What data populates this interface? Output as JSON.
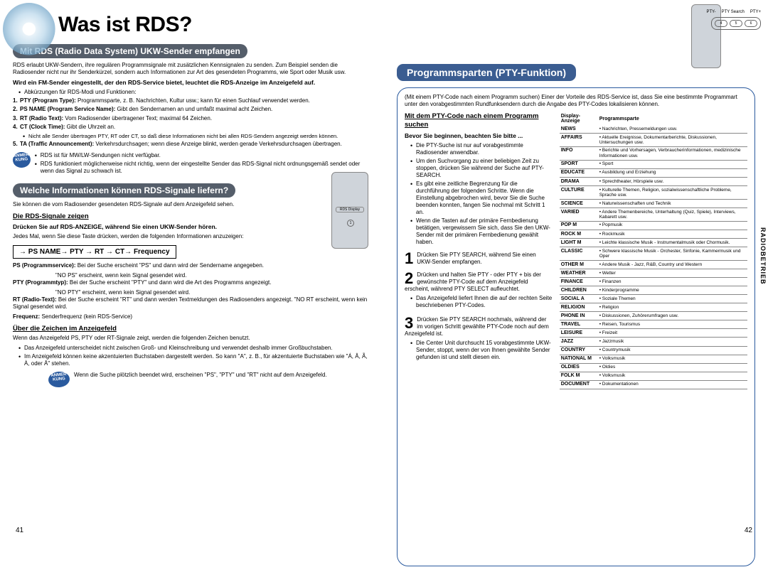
{
  "title": "Was ist RDS?",
  "side_tab": "RADIOBETRIEB",
  "page_left_num": "41",
  "page_right_num": "42",
  "colors": {
    "banner_gray": "#555e6a",
    "banner_blue": "#3b5d91",
    "panel_border": "#2a5a9e",
    "badge_bg": "#2a5a9e"
  },
  "left": {
    "s1": {
      "banner": "Mit RDS (Radio Data System) UKW-Sender empfangen",
      "p1": "RDS erlaubt UKW-Sendern, ihre regulären Programmsignale mit zusätzlichen Kennsignalen zu senden. Zum Beispiel senden die Radiosender nicht nur ihr Senderkürzel, sondern auch Informationen zur Art des gesendeten Programms, wie Sport oder Musik usw.",
      "bold1": "Wird ein FM-Sender eingestellt, der den RDS-Service bietet, leuchtet die RDS-Anzeige im Anzeigefeld auf.",
      "abbrev_intro": "Abkürzungen für RDS-Modi und Funktionen:",
      "defs": [
        {
          "n": "1.",
          "b": "PTY (Program Type):",
          "t": " Programmsparte, z. B. Nachrichten, Kultur usw.; kann für einen Suchlauf verwendet werden."
        },
        {
          "n": "2.",
          "b": "PS NAME (Program Service Name):",
          "t": " Gibt den Sendernamen an und umfaßt maximal acht Zeichen."
        },
        {
          "n": "3.",
          "b": "RT (Radio Text):",
          "t": " Vom Radiosender übertragener Text; maximal 64 Zeichen."
        },
        {
          "n": "4.",
          "b": "CT (Clock Time):",
          "t": " Gibt die Uhrzeit an."
        }
      ],
      "note1": "Nicht alle Sender übertragen PTY, RT oder CT, so daß diese Informationen nicht bei allen RDS-Sendern angezeigt werden können.",
      "defs2": [
        {
          "n": "5.",
          "b": "TA (Traffic Announcement):",
          "t": " Verkehrsdurchsagen; wenn diese Anzeige blinkt, werden gerade Verkehrsdurchsagen übertragen."
        }
      ],
      "anmer_label": "ANMER KUNG",
      "anmer_items": [
        "RDS ist für MW/LW-Sendungen nicht  verfügbar.",
        "RDS funktioniert möglicherweise nicht richtig, wenn der eingestellte Sender das RDS-Signal nicht ordnungsgemäß sendet oder wenn das Signal zu schwach ist."
      ]
    },
    "s2": {
      "banner": "Welche Informationen können RDS-Signale liefern?",
      "p1": "Sie können die vom Radiosender gesendeten RDS-Signale auf dem Anzeigefeld sehen.",
      "sub1": "Die RDS-Signale zeigen",
      "bold1": "Drücken Sie auf RDS-ANZEIGE, während Sie einen UKW-Sender hören.",
      "p2": "Jedes Mal, wenn Sie diese Taste drücken, werden die folgenden Informationen anzuzeigen:",
      "flow": "→ PS NAME→ PTY → RT → CT→ Frequency",
      "rows": [
        {
          "b": "PS (Programmservice):",
          "t": " Bei der Suche erscheint \"PS\" und dann wird der Sendername angegeben.",
          "ind": "\"NO PS\" erscheint, wenn kein Signal gesendet wird."
        },
        {
          "b": "PTY (Programmtyp):",
          "t": "   Bei der Suche erscheint \"PTY\" und dann wird die Art des Programms angezeigt.",
          "ind": "\"NO PTY\" erscheint, wenn kein Signal gesendet wird."
        },
        {
          "b": "RT (Radio-Text):",
          "t": " Bei der Suche erscheint \"RT\" und dann werden Textmeldungen des Radiosenders angezeigt. \"NO RT erscheint, wenn kein Signal gesendet wird."
        },
        {
          "b": "Frequenz:",
          "t": " Senderfrequenz (kein RDS-Service)"
        }
      ],
      "sub2": "Über die Zeichen im Anzeigefeld",
      "p3": "Wenn das Anzeigefeld PS, PTY oder RT-Signale zeigt, werden die folgenden Zeichen benutzt.",
      "bullets2": [
        "Das Anzeigefeld unterscheidet nicht zwischen Groß- und Kleinschreibung und verwendet deshalb immer Großbuchstaben.",
        "Im Anzeigefeld können keine akzentuierten Buchstaben dargestellt werden. So kann \"A\", z. B., für akzentuierte Buchstaben wie \"Á, Â, Ã, À,  oder Ā\" stehen."
      ],
      "anmer2": "Wenn die Suche plötzlich beendet wird, erscheinen \"PS\",  \"PTY\" und \"RT\" nicht auf dem Anzeigefeld.",
      "rds_display_label": "RDS Display",
      "rds_display_num": "1"
    }
  },
  "right": {
    "remote_labels": [
      "PTY-",
      "PTY Search",
      "PTY+"
    ],
    "remote_buttons": [
      "4",
      "5",
      "6"
    ],
    "banner": "Programmsparten (PTY-Funktion)",
    "intro": "(Mit einem PTY-Code nach einem Programm suchen) Einer der Vorteile des RDS-Service ist, dass Sie eine bestimmte Programmart unter den vorabgestimmten Rundfunksendern durch die Angabe des PTY-Codes lokalisieren können.",
    "sub1": "Mit dem PTY-Code nach einem Programm suchen",
    "bold1": "Bevor Sie beginnen, beachten Sie bitte ...",
    "bullets": [
      "Die PTY-Suche ist nur auf vorabgestimmte Radiosender anwendbar.",
      "Um den Suchvorgang zu einer beliebigen Zeit zu stoppen, drücken Sie während der Suche auf PTY-SEARCH.",
      "Es gibt eine zeitliche Begrenzung für die durchführung der folgenden Schritte. Wenn die Einstellung abgebrochen wird, bevor Sie die Suche beenden konnten, fangen Sie nochmal mit Schritt 1 an.",
      "Wenn die Tasten auf der primäre Fernbedienung betätigen, vergewissern Sie sich, dass Sie den UKW-Sender mit der primären Fernbedienung gewählt haben."
    ],
    "steps": [
      {
        "n": "1",
        "t": "Drücken Sie PTY SEARCH, während Sie einen UKW-Sender empfangen."
      },
      {
        "n": "2",
        "t": "Drücken und halten Sie PTY - oder PTY + bis der gewünschte PTY-Code auf dem Anzeigefeld erscheint, während PTY SELECT aufleuchtet.",
        "sub": "Das Anzeigefeld liefert Ihnen die auf der rechten Seite beschriebenen PTY-Codes."
      },
      {
        "n": "3",
        "t": "Drücken Sie PTY SEARCH nochmals, während der im vorigen Schritt gewählte PTY-Code noch auf dem Anzeigefeld ist.",
        "sub": "Die Center Unit durchsucht 15 vorabgestimmte UKW-Sender, stoppt, wenn der von Ihnen gewählte Sender gefunden ist und stellt diesen ein."
      }
    ],
    "pty_table": {
      "headers": [
        "Display-Anzeige",
        "Programmsparte"
      ],
      "rows": [
        [
          "NEWS",
          "• Nachrichten, Pressemeldungen usw."
        ],
        [
          "AFFAIRS",
          "• Aktuelle Ereignisse, Dokumentarberichte, Diskussionen, Untersuchungen usw."
        ],
        [
          "INFO",
          "• Berichte und Vorhersagen, Verbraucherinformationen, medizinische Informationen usw."
        ],
        [
          "SPORT",
          "• Sport"
        ],
        [
          "EDUCATE",
          "• Ausbildung und Erziehung"
        ],
        [
          "DRAMA",
          "• Sprechtheater, Hörspiele usw."
        ],
        [
          "CULTURE",
          "• Kulturelle Themen, Religion, sozialwissenschaftliche Probleme, Sprache usw."
        ],
        [
          "SCIENCE",
          "• Naturwissenschaften und Technik"
        ],
        [
          "VARIED",
          "• Andere Themenbereiche, Unterhaltung (Quiz, Spiele), Interviews, Kabarett usw."
        ],
        [
          "POP M",
          "• Popmusik"
        ],
        [
          "ROCK M",
          "• Rockmusik"
        ],
        [
          "LIGHT M",
          "• Leichte klassische Musik -  Instrumentalmusik oder Chormusik."
        ],
        [
          "CLASSIC",
          "• Schwere klassische Musik - Orchester, Sinfonie, Kammermusik und Oper"
        ],
        [
          "OTHER M",
          "• Andere Musik - Jazz, R&B, Country und Western"
        ],
        [
          "WEATHER",
          "• Wetter"
        ],
        [
          "FINANCE",
          "• Finanzen"
        ],
        [
          "CHILDREN",
          "• Kinderprogramme"
        ],
        [
          "SOCIAL A",
          "• Soziale Themen"
        ],
        [
          "RELIGION",
          "• Religion"
        ],
        [
          "PHONE IN",
          "• Diskussionen, Zuhörerumfragen usw."
        ],
        [
          "TRAVEL",
          "• Reisen, Tourismus"
        ],
        [
          "LEISURE",
          "• Freizeit"
        ],
        [
          "JAZZ",
          "• Jazzmusik"
        ],
        [
          "COUNTRY",
          "• Countrymusik"
        ],
        [
          "NATIONAL M",
          "• Volksmusik"
        ],
        [
          "OLDIES",
          "• Oldies"
        ],
        [
          "FOLK M",
          "• Volksmusik"
        ],
        [
          "DOCUMENT",
          "• Dokumentationen"
        ]
      ]
    }
  }
}
